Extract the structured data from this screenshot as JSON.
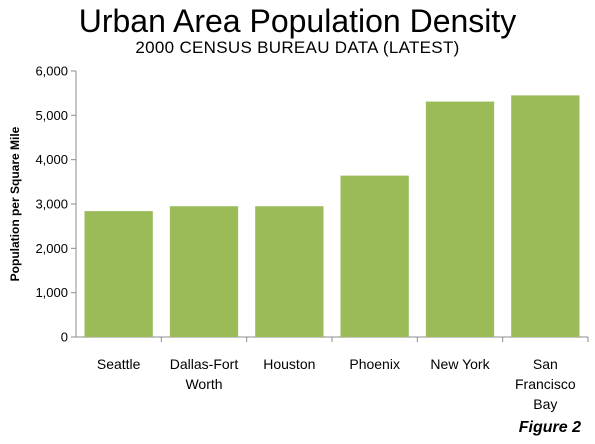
{
  "chart_data": {
    "type": "bar",
    "title": "Urban Area Population Density",
    "subtitle": "2000 CENSUS BUREAU DATA (LATEST)",
    "xlabel": "",
    "ylabel": "Population per Square Mile",
    "categories": [
      [
        "Seattle"
      ],
      [
        "Dallas-Fort",
        "Worth"
      ],
      [
        "Houston"
      ],
      [
        "Phoenix"
      ],
      [
        "New York"
      ],
      [
        "San",
        "Francisco",
        "Bay"
      ]
    ],
    "values": [
      2840,
      2950,
      2950,
      3640,
      5310,
      5450
    ],
    "ylim": [
      0,
      6000
    ],
    "yticks": [
      "0",
      "1,000",
      "2,000",
      "3,000",
      "4,000",
      "5,000",
      "6,000"
    ],
    "grid": false,
    "legend": "none",
    "bar_color": "#9bbb59",
    "annotation": "Figure 2"
  }
}
